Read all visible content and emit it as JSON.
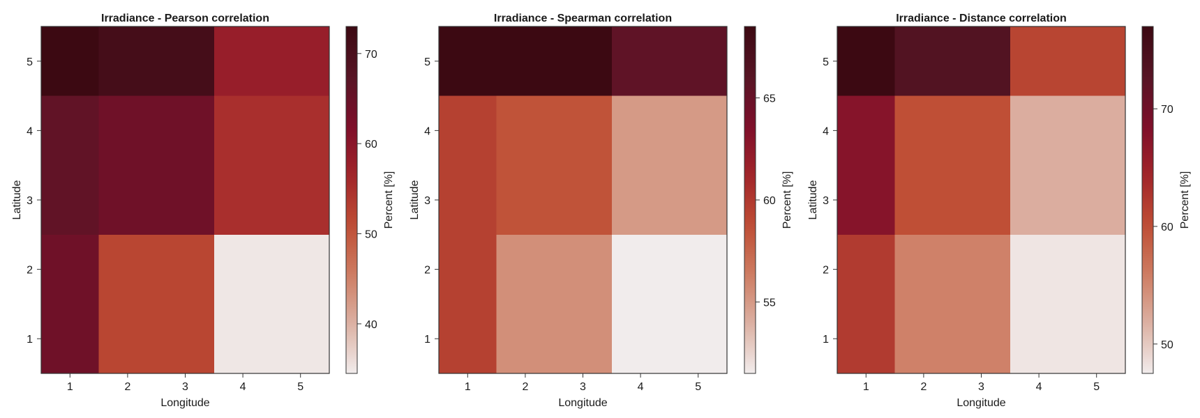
{
  "chart_data": [
    {
      "type": "heatmap",
      "title": "Irradiance - Pearson correlation",
      "xlabel": "Longitude",
      "ylabel": "Latitude",
      "colorbar_label": "Percent [%]",
      "x_ticks": [
        "1",
        "2",
        "3",
        "4",
        "5"
      ],
      "y_ticks": [
        "1",
        "2",
        "3",
        "4",
        "5"
      ],
      "xlim": [
        0.5,
        5.5
      ],
      "ylim": [
        0.5,
        5.5
      ],
      "colorbar_range": [
        34.5,
        73
      ],
      "colorbar_ticks": [
        40,
        50,
        60,
        70
      ],
      "cells": [
        {
          "x": [
            0.5,
            1.5
          ],
          "y": [
            0.5,
            2.5
          ],
          "value": 64
        },
        {
          "x": [
            1.5,
            3.5
          ],
          "y": [
            0.5,
            2.5
          ],
          "value": 52
        },
        {
          "x": [
            3.5,
            5.5
          ],
          "y": [
            0.5,
            2.5
          ],
          "value": 35
        },
        {
          "x": [
            0.5,
            1.5
          ],
          "y": [
            2.5,
            4.5
          ],
          "value": 66
        },
        {
          "x": [
            1.5,
            3.5
          ],
          "y": [
            2.5,
            4.5
          ],
          "value": 64
        },
        {
          "x": [
            3.5,
            5.5
          ],
          "y": [
            2.5,
            4.5
          ],
          "value": 55
        },
        {
          "x": [
            0.5,
            1.5
          ],
          "y": [
            4.5,
            5.5
          ],
          "value": 73
        },
        {
          "x": [
            1.5,
            3.5
          ],
          "y": [
            4.5,
            5.5
          ],
          "value": 71
        },
        {
          "x": [
            3.5,
            5.5
          ],
          "y": [
            4.5,
            5.5
          ],
          "value": 58
        }
      ]
    },
    {
      "type": "heatmap",
      "title": "Irradiance - Spearman correlation",
      "xlabel": "Longitude",
      "ylabel": "Latitude",
      "colorbar_label": "Percent [%]",
      "x_ticks": [
        "1",
        "2",
        "3",
        "4",
        "5"
      ],
      "y_ticks": [
        "1",
        "2",
        "3",
        "4",
        "5"
      ],
      "xlim": [
        0.5,
        5.5
      ],
      "ylim": [
        0.5,
        5.5
      ],
      "colorbar_range": [
        51.5,
        68.5
      ],
      "colorbar_ticks": [
        55,
        60,
        65
      ],
      "cells": [
        {
          "x": [
            0.5,
            1.5
          ],
          "y": [
            0.5,
            4.5
          ],
          "value": 59.5
        },
        {
          "x": [
            1.5,
            3.5
          ],
          "y": [
            0.5,
            2.5
          ],
          "value": 55.5
        },
        {
          "x": [
            3.5,
            5.5
          ],
          "y": [
            0.5,
            2.5
          ],
          "value": 51.5
        },
        {
          "x": [
            1.5,
            3.5
          ],
          "y": [
            2.5,
            4.5
          ],
          "value": 58.5
        },
        {
          "x": [
            3.5,
            5.5
          ],
          "y": [
            2.5,
            4.5
          ],
          "value": 55
        },
        {
          "x": [
            0.5,
            3.5
          ],
          "y": [
            4.5,
            5.5
          ],
          "value": 68.5
        },
        {
          "x": [
            3.5,
            5.5
          ],
          "y": [
            4.5,
            5.5
          ],
          "value": 65.5
        }
      ]
    },
    {
      "type": "heatmap",
      "title": "Irradiance - Distance correlation",
      "xlabel": "Longitude",
      "ylabel": "Latitude",
      "colorbar_label": "Percent [%]",
      "x_ticks": [
        "1",
        "2",
        "3",
        "4",
        "5"
      ],
      "y_ticks": [
        "1",
        "2",
        "3",
        "4",
        "5"
      ],
      "xlim": [
        0.5,
        5.5
      ],
      "ylim": [
        0.5,
        5.5
      ],
      "colorbar_range": [
        47.5,
        77
      ],
      "colorbar_ticks": [
        50,
        60,
        70
      ],
      "cells": [
        {
          "x": [
            0.5,
            1.5
          ],
          "y": [
            0.5,
            2.5
          ],
          "value": 62
        },
        {
          "x": [
            1.5,
            3.5
          ],
          "y": [
            0.5,
            2.5
          ],
          "value": 55.5
        },
        {
          "x": [
            3.5,
            5.5
          ],
          "y": [
            0.5,
            2.5
          ],
          "value": 48
        },
        {
          "x": [
            0.5,
            1.5
          ],
          "y": [
            2.5,
            4.5
          ],
          "value": 67.5
        },
        {
          "x": [
            1.5,
            3.5
          ],
          "y": [
            2.5,
            4.5
          ],
          "value": 60
        },
        {
          "x": [
            3.5,
            5.5
          ],
          "y": [
            2.5,
            4.5
          ],
          "value": 52
        },
        {
          "x": [
            0.5,
            1.5
          ],
          "y": [
            4.5,
            5.5
          ],
          "value": 77
        },
        {
          "x": [
            1.5,
            3.5
          ],
          "y": [
            4.5,
            5.5
          ],
          "value": 73.5
        },
        {
          "x": [
            3.5,
            5.5
          ],
          "y": [
            4.5,
            5.5
          ],
          "value": 61
        }
      ]
    }
  ],
  "colormap": {
    "name": "amp",
    "stops": [
      "#f1ecec",
      "#dcb1a3",
      "#cd7c62",
      "#be4d34",
      "#a1242a",
      "#7d0e2a",
      "#561525",
      "#3c0912"
    ]
  }
}
